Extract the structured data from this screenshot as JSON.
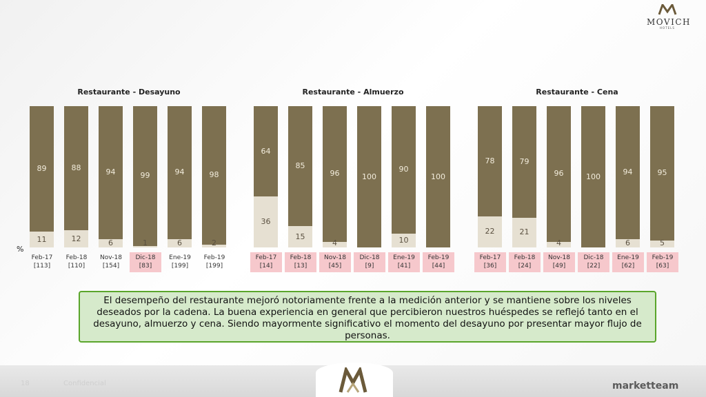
{
  "brand": {
    "name": "MOVICH",
    "sub": "HOTELS"
  },
  "percent_label": "%",
  "note": "El desempeño del restaurante mejoró notoriamente frente a la medición anterior y se mantiene sobre los niveles deseados por la cadena. La buena experiencia en general que percibieron nuestros huéspedes se reflejó tanto en el desayuno, almuerzo y cena. Siendo mayormente significativo el momento del desayuno por presentar mayor flujo de personas.",
  "footer": {
    "page": "18",
    "confidential": "Confidencial",
    "company": "marketteam"
  },
  "colors": {
    "top_segment": "#7d7050",
    "bottom_segment": "#e6e0d2",
    "highlight": "#f6c8cc",
    "note_border": "#5aa52b",
    "note_fill": "#d6eacb"
  },
  "chart_data": [
    {
      "type": "bar",
      "title": "Restaurante - Desayuno",
      "categories": [
        "Feb-17",
        "Feb-18",
        "Nov-18",
        "Dic-18",
        "Ene-19",
        "Feb-19"
      ],
      "sample_sizes": [
        "[113]",
        "[110]",
        "[154]",
        "[83]",
        "[199]",
        "[199]"
      ],
      "highlighted": [
        false,
        false,
        false,
        true,
        false,
        false
      ],
      "series": [
        {
          "values": [
            89,
            88,
            94,
            99,
            94,
            98
          ]
        },
        {
          "values": [
            11,
            12,
            6,
            1,
            6,
            2
          ]
        }
      ],
      "ylim": [
        0,
        100
      ]
    },
    {
      "type": "bar",
      "title": "Restaurante - Almuerzo",
      "categories": [
        "Feb-17",
        "Feb-18",
        "Nov-18",
        "Dic-18",
        "Ene-19",
        "Feb-19"
      ],
      "sample_sizes": [
        "[14]",
        "[13]",
        "[45]",
        "[9]",
        "[41]",
        "[44]"
      ],
      "highlighted": [
        true,
        true,
        true,
        true,
        true,
        true
      ],
      "series": [
        {
          "values": [
            64,
            85,
            96,
            100,
            90,
            100
          ]
        },
        {
          "values": [
            36,
            15,
            4,
            null,
            10,
            null
          ]
        }
      ],
      "ylim": [
        0,
        100
      ]
    },
    {
      "type": "bar",
      "title": "Restaurante - Cena",
      "categories": [
        "Feb-17",
        "Feb-18",
        "Nov-18",
        "Dic-18",
        "Ene-19",
        "Feb-19"
      ],
      "sample_sizes": [
        "[36]",
        "[24]",
        "[49]",
        "[22]",
        "[62]",
        "[63]"
      ],
      "highlighted": [
        true,
        true,
        true,
        true,
        true,
        true
      ],
      "series": [
        {
          "values": [
            78,
            79,
            96,
            100,
            94,
            95
          ]
        },
        {
          "values": [
            22,
            21,
            4,
            null,
            6,
            5
          ]
        }
      ],
      "ylim": [
        0,
        100
      ]
    }
  ]
}
